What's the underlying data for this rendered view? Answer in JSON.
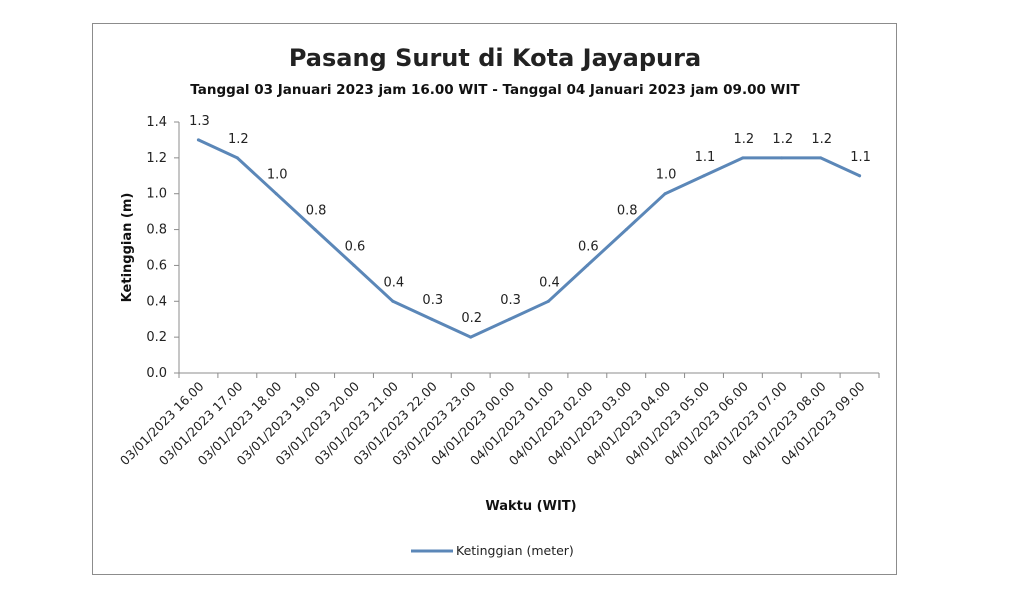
{
  "chart_data": {
    "type": "line",
    "title": "Pasang Surut di Kota Jayapura",
    "subtitle": "Tanggal 03 Januari 2023 jam 16.00 WIT - Tanggal 04 Januari 2023 jam 09.00 WIT",
    "xlabel": "Waktu (WIT)",
    "ylabel": "Ketinggian (m)",
    "ylim": [
      0,
      1.4
    ],
    "yticks": [
      "0.0",
      "0.2",
      "0.4",
      "0.6",
      "0.8",
      "1.0",
      "1.2",
      "1.4"
    ],
    "categories": [
      "03/01/2023 16.00",
      "03/01/2023 17.00",
      "03/01/2023 18.00",
      "03/01/2023 19.00",
      "03/01/2023 20.00",
      "03/01/2023 21.00",
      "03/01/2023 22.00",
      "03/01/2023 23.00",
      "04/01/2023 00.00",
      "04/01/2023 01.00",
      "04/01/2023 02.00",
      "04/01/2023 03.00",
      "04/01/2023 04.00",
      "04/01/2023 05.00",
      "04/01/2023 06.00",
      "04/01/2023 07.00",
      "04/01/2023 08.00",
      "04/01/2023 09.00"
    ],
    "series": [
      {
        "name": "Ketinggian (meter)",
        "color": "#5b87b8",
        "values": [
          1.3,
          1.2,
          1.0,
          0.8,
          0.6,
          0.4,
          0.3,
          0.2,
          0.3,
          0.4,
          0.6,
          0.8,
          1.0,
          1.1,
          1.2,
          1.2,
          1.2,
          1.1
        ],
        "labels": [
          "1.3",
          "1.2",
          "1.0",
          "0.8",
          "0.6",
          "0.4",
          "0.3",
          "0.2",
          "0.3",
          "0.4",
          "0.6",
          "0.8",
          "1.0",
          "1.1",
          "1.2",
          "1.2",
          "1.2",
          "1.1"
        ]
      }
    ],
    "grid": false,
    "legend_position": "bottom"
  }
}
